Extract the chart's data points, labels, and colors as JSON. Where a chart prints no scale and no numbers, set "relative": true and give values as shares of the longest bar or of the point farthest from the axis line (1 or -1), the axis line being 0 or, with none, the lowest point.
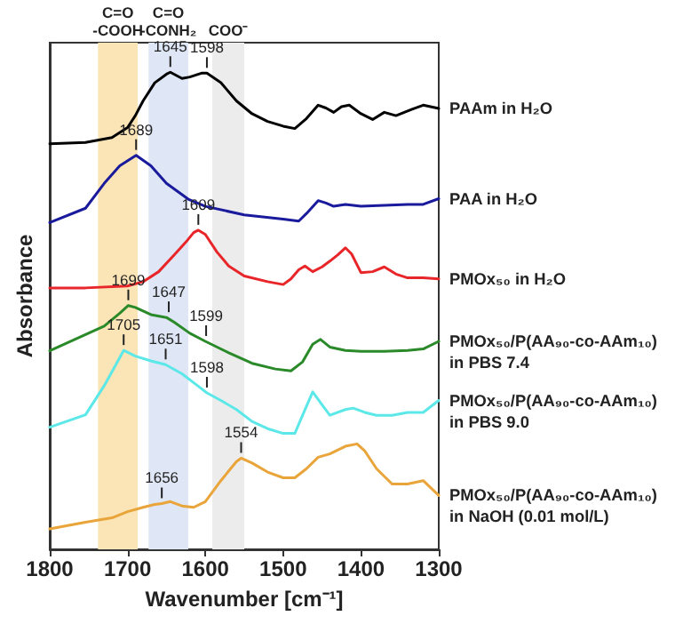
{
  "chart_data": {
    "type": "line",
    "xlabel": "Wavenumber [cm⁻¹]",
    "ylabel": "Absorbance",
    "relative": true,
    "xlim": [
      1800,
      1300
    ],
    "xticks": [
      1800,
      1700,
      1600,
      1500,
      1400,
      1300
    ],
    "grid": false,
    "legend": false,
    "marker": "none",
    "line_style": "solid",
    "tick_labels": "x",
    "series": [
      {
        "name": "PAAm in H₂O",
        "color": "#000000",
        "x": [
          1800,
          1754,
          1720,
          1700,
          1690,
          1680,
          1665,
          1650,
          1645,
          1630,
          1620,
          1605,
          1598,
          1580,
          1560,
          1540,
          1520,
          1500,
          1485,
          1470,
          1455,
          1445,
          1435,
          1425,
          1415,
          1400,
          1385,
          1370,
          1355,
          1335,
          1320,
          1300
        ],
        "values": [
          0.85,
          0.853,
          0.863,
          0.884,
          0.909,
          0.94,
          0.978,
          0.996,
          1.0,
          0.987,
          0.99,
          0.998,
          0.998,
          0.978,
          0.94,
          0.913,
          0.897,
          0.887,
          0.882,
          0.903,
          0.931,
          0.925,
          0.916,
          0.928,
          0.931,
          0.913,
          0.901,
          0.916,
          0.909,
          0.922,
          0.931,
          0.924
        ]
      },
      {
        "name": "PAA in H₂O",
        "color": "#1a1a9c",
        "x": [
          1800,
          1754,
          1730,
          1710,
          1689,
          1670,
          1650,
          1622,
          1600,
          1550,
          1500,
          1480,
          1470,
          1455,
          1445,
          1435,
          1420,
          1400,
          1370,
          1340,
          1320,
          1300
        ],
        "values": [
          0.685,
          0.715,
          0.767,
          0.804,
          0.826,
          0.804,
          0.767,
          0.734,
          0.719,
          0.701,
          0.692,
          0.688,
          0.704,
          0.731,
          0.726,
          0.719,
          0.723,
          0.719,
          0.721,
          0.723,
          0.723,
          0.735
        ]
      },
      {
        "name": "PMOx₅₀ in H₂O",
        "color": "#e8262a",
        "x": [
          1800,
          1754,
          1700,
          1680,
          1660,
          1640,
          1625,
          1615,
          1609,
          1600,
          1585,
          1570,
          1550,
          1520,
          1500,
          1490,
          1480,
          1472,
          1462,
          1450,
          1440,
          1430,
          1420,
          1412,
          1400,
          1385,
          1370,
          1355,
          1340,
          1320,
          1300
        ],
        "values": [
          0.548,
          0.548,
          0.552,
          0.561,
          0.582,
          0.617,
          0.644,
          0.664,
          0.669,
          0.66,
          0.623,
          0.594,
          0.573,
          0.561,
          0.555,
          0.567,
          0.586,
          0.594,
          0.582,
          0.592,
          0.604,
          0.617,
          0.632,
          0.619,
          0.58,
          0.582,
          0.592,
          0.577,
          0.569,
          0.569,
          0.567
        ]
      },
      {
        "name": "PMOx₅₀/P(AA₉₀-co-AAm₁₀)\nin PBS 7.4",
        "color": "#2a8a2a",
        "x": [
          1800,
          1754,
          1730,
          1710,
          1699,
          1690,
          1670,
          1650,
          1640,
          1620,
          1600,
          1570,
          1540,
          1510,
          1490,
          1475,
          1462,
          1452,
          1440,
          1420,
          1400,
          1370,
          1340,
          1320,
          1300
        ],
        "values": [
          0.416,
          0.45,
          0.468,
          0.495,
          0.511,
          0.507,
          0.492,
          0.486,
          0.476,
          0.453,
          0.436,
          0.412,
          0.39,
          0.378,
          0.374,
          0.393,
          0.43,
          0.44,
          0.424,
          0.417,
          0.415,
          0.415,
          0.417,
          0.42,
          0.436
        ]
      },
      {
        "name": "PMOx₅₀/P(AA₉₀-co-AAm₁₀)\nin PBS 9.0",
        "color": "#5ce8e8",
        "x": [
          1800,
          1754,
          1730,
          1715,
          1705,
          1690,
          1670,
          1651,
          1630,
          1610,
          1598,
          1580,
          1560,
          1540,
          1520,
          1500,
          1485,
          1475,
          1462,
          1450,
          1440,
          1420,
          1410,
          1395,
          1380,
          1360,
          1340,
          1320,
          1300
        ],
        "values": [
          0.256,
          0.282,
          0.343,
          0.387,
          0.417,
          0.405,
          0.395,
          0.387,
          0.368,
          0.343,
          0.328,
          0.312,
          0.293,
          0.268,
          0.253,
          0.243,
          0.243,
          0.281,
          0.33,
          0.303,
          0.281,
          0.293,
          0.296,
          0.287,
          0.281,
          0.281,
          0.287,
          0.287,
          0.312
        ]
      },
      {
        "name": "PMOx₅₀/P(AA₉₀-co-AAm₁₀)\nin NaOH (0.01 mol/L)",
        "color": "#e9a43a",
        "x": [
          1800,
          1754,
          1720,
          1700,
          1680,
          1665,
          1656,
          1645,
          1630,
          1615,
          1600,
          1580,
          1560,
          1554,
          1540,
          1520,
          1500,
          1485,
          1470,
          1455,
          1440,
          1420,
          1405,
          1395,
          1380,
          1360,
          1340,
          1320,
          1300
        ],
        "values": [
          0.043,
          0.057,
          0.066,
          0.079,
          0.088,
          0.094,
          0.096,
          0.1,
          0.091,
          0.088,
          0.1,
          0.144,
          0.184,
          0.191,
          0.181,
          0.162,
          0.15,
          0.15,
          0.169,
          0.193,
          0.2,
          0.216,
          0.221,
          0.206,
          0.169,
          0.137,
          0.137,
          0.144,
          0.113
        ]
      }
    ],
    "bands": [
      {
        "axis": "x",
        "from": 1738,
        "to": 1687,
        "label": "C=O\n-COOH",
        "color": "#fbe5b6"
      },
      {
        "axis": "x",
        "from": 1673,
        "to": 1622,
        "label": "C=O\n-CONH₂",
        "color": "#dfe6f5"
      },
      {
        "axis": "x",
        "from": 1591,
        "to": 1550,
        "label": "COO⁻",
        "color": "#ececec"
      }
    ],
    "annotations": [
      {
        "text": "1645",
        "x": 1645,
        "y": 1.0
      },
      {
        "text": "1598",
        "x": 1598,
        "y": 0.998
      },
      {
        "text": "1689",
        "x": 1689,
        "y": 0.826
      },
      {
        "text": "1609",
        "x": 1609,
        "y": 0.669
      },
      {
        "text": "1699",
        "x": 1699,
        "y": 0.511
      },
      {
        "text": "1647",
        "x": 1647,
        "y": 0.486
      },
      {
        "text": "1599",
        "x": 1599,
        "y": 0.436
      },
      {
        "text": "1705",
        "x": 1705,
        "y": 0.417
      },
      {
        "text": "1651",
        "x": 1651,
        "y": 0.387
      },
      {
        "text": "1598",
        "x": 1598,
        "y": 0.328
      },
      {
        "text": "1656",
        "x": 1656,
        "y": 0.096
      },
      {
        "text": "1554",
        "x": 1554,
        "y": 0.191
      }
    ]
  }
}
